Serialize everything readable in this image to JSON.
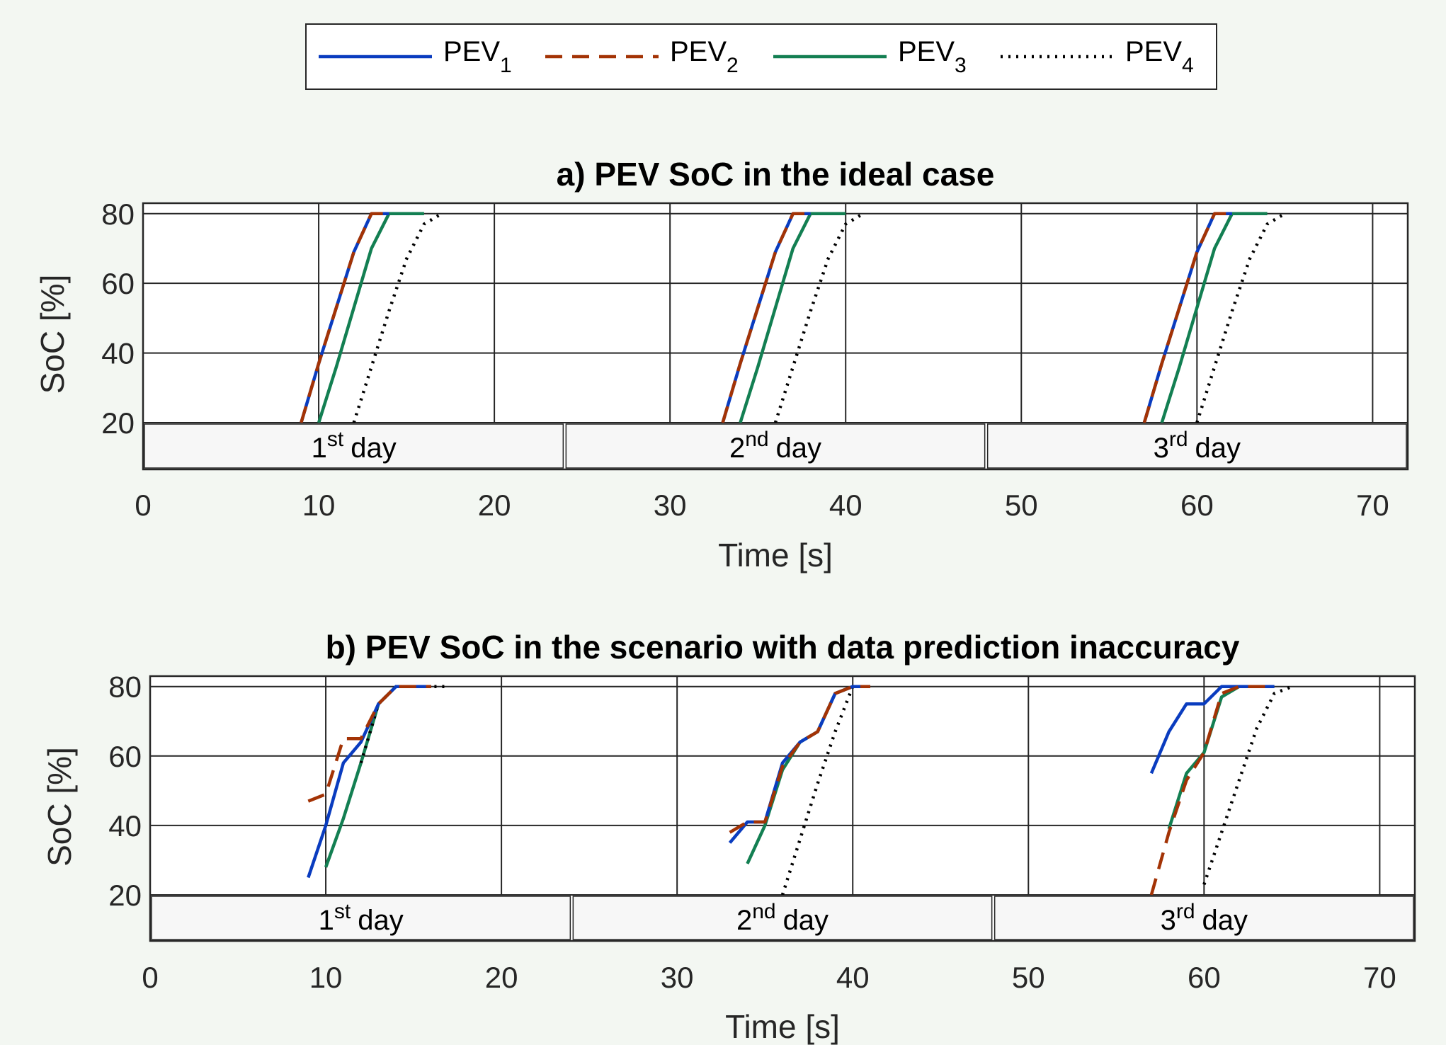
{
  "legend": {
    "entries": [
      {
        "base": "PEV",
        "sub": "1",
        "color": "#0a3cbf",
        "dash": "solid"
      },
      {
        "base": "PEV",
        "sub": "2",
        "color": "#a33305",
        "dash": "dashed"
      },
      {
        "base": "PEV",
        "sub": "3",
        "color": "#137f52",
        "dash": "solid"
      },
      {
        "base": "PEV",
        "sub": "4",
        "color": "#000000",
        "dash": "dotted"
      }
    ]
  },
  "chart_data": [
    {
      "type": "line",
      "title": "a) PEV SoC in the ideal case",
      "xlabel": "Time [s]",
      "ylabel": "SoC [%]",
      "xlim": [
        0,
        72
      ],
      "ylim": [
        20,
        83
      ],
      "xticks": [
        0,
        10,
        20,
        30,
        40,
        50,
        60,
        70
      ],
      "yticks": [
        20,
        40,
        60,
        80
      ],
      "grid": true,
      "day_band": [
        {
          "num": "1",
          "sup": "st",
          "word": "day",
          "range": [
            0,
            24
          ]
        },
        {
          "num": "2",
          "sup": "nd",
          "word": "day",
          "range": [
            24,
            48
          ]
        },
        {
          "num": "3",
          "sup": "rd",
          "word": "day",
          "range": [
            48,
            72
          ]
        }
      ],
      "series": [
        {
          "name": "PEV1",
          "segments": [
            [
              [
                9,
                20
              ],
              [
                10,
                37
              ],
              [
                11,
                53
              ],
              [
                12,
                69
              ],
              [
                13,
                80
              ],
              [
                14,
                80
              ]
            ],
            [
              [
                33,
                20
              ],
              [
                34,
                37
              ],
              [
                35,
                53
              ],
              [
                36,
                69
              ],
              [
                37,
                80
              ],
              [
                38,
                80
              ]
            ],
            [
              [
                57,
                20
              ],
              [
                58,
                37
              ],
              [
                59,
                53
              ],
              [
                60,
                69
              ],
              [
                61,
                80
              ],
              [
                62,
                80
              ]
            ]
          ]
        },
        {
          "name": "PEV2",
          "segments": [
            [
              [
                9,
                20
              ],
              [
                10,
                37
              ],
              [
                11,
                53
              ],
              [
                12,
                69
              ],
              [
                13,
                80
              ],
              [
                14,
                80
              ]
            ],
            [
              [
                33,
                20
              ],
              [
                34,
                37
              ],
              [
                35,
                53
              ],
              [
                36,
                69
              ],
              [
                37,
                80
              ],
              [
                38,
                80
              ]
            ],
            [
              [
                57,
                20
              ],
              [
                58,
                37
              ],
              [
                59,
                53
              ],
              [
                60,
                69
              ],
              [
                61,
                80
              ],
              [
                62,
                80
              ]
            ]
          ]
        },
        {
          "name": "PEV3",
          "segments": [
            [
              [
                10,
                20
              ],
              [
                11,
                36
              ],
              [
                12,
                53
              ],
              [
                13,
                70
              ],
              [
                14,
                80
              ],
              [
                16,
                80
              ]
            ],
            [
              [
                34,
                20
              ],
              [
                35,
                36
              ],
              [
                36,
                53
              ],
              [
                37,
                70
              ],
              [
                38,
                80
              ],
              [
                40,
                80
              ]
            ],
            [
              [
                58,
                20
              ],
              [
                59,
                36
              ],
              [
                60,
                53
              ],
              [
                61,
                70
              ],
              [
                62,
                80
              ],
              [
                64,
                80
              ]
            ]
          ]
        },
        {
          "name": "PEV4",
          "segments": [
            [
              [
                12,
                20
              ],
              [
                13,
                36
              ],
              [
                14,
                52
              ],
              [
                15,
                67
              ],
              [
                16,
                77
              ],
              [
                17,
                80
              ]
            ],
            [
              [
                36,
                20
              ],
              [
                37,
                36
              ],
              [
                38,
                52
              ],
              [
                39,
                67
              ],
              [
                40,
                77
              ],
              [
                41,
                80
              ]
            ],
            [
              [
                60,
                20
              ],
              [
                61,
                36
              ],
              [
                62,
                52
              ],
              [
                63,
                67
              ],
              [
                64,
                77
              ],
              [
                65,
                80
              ]
            ]
          ]
        }
      ]
    },
    {
      "type": "line",
      "title": "b) PEV SoC in the scenario with data prediction inaccuracy",
      "xlabel": "Time [s]",
      "ylabel": "SoC [%]",
      "xlim": [
        0,
        72
      ],
      "ylim": [
        20,
        83
      ],
      "xticks": [
        0,
        10,
        20,
        30,
        40,
        50,
        60,
        70
      ],
      "yticks": [
        20,
        40,
        60,
        80
      ],
      "grid": true,
      "day_band": [
        {
          "num": "1",
          "sup": "st",
          "word": "day",
          "range": [
            0,
            24
          ]
        },
        {
          "num": "2",
          "sup": "nd",
          "word": "day",
          "range": [
            24,
            48
          ]
        },
        {
          "num": "3",
          "sup": "rd",
          "word": "day",
          "range": [
            48,
            72
          ]
        }
      ],
      "series": [
        {
          "name": "PEV1",
          "segments": [
            [
              [
                9,
                25
              ],
              [
                10,
                40
              ],
              [
                11,
                58
              ],
              [
                12,
                64
              ],
              [
                13,
                75
              ],
              [
                14,
                80
              ],
              [
                16,
                80
              ]
            ],
            [
              [
                33,
                35
              ],
              [
                34,
                41
              ],
              [
                35,
                41
              ],
              [
                36,
                58
              ],
              [
                37,
                64
              ],
              [
                38,
                67
              ],
              [
                39,
                78
              ],
              [
                40,
                80
              ],
              [
                41,
                80
              ]
            ],
            [
              [
                57,
                55
              ],
              [
                58,
                67
              ],
              [
                59,
                75
              ],
              [
                60,
                75
              ],
              [
                61,
                80
              ],
              [
                62,
                80
              ],
              [
                64,
                80
              ]
            ]
          ]
        },
        {
          "name": "PEV2",
          "segments": [
            [
              [
                9,
                47
              ],
              [
                10,
                49
              ],
              [
                11,
                65
              ],
              [
                12,
                65
              ],
              [
                13,
                75
              ],
              [
                14,
                80
              ],
              [
                16,
                80
              ]
            ],
            [
              [
                33,
                38
              ],
              [
                34,
                41
              ],
              [
                35,
                41
              ],
              [
                36,
                57
              ],
              [
                37,
                64
              ],
              [
                38,
                67
              ],
              [
                39,
                78
              ],
              [
                40,
                80
              ],
              [
                41,
                80
              ]
            ],
            [
              [
                57,
                20
              ],
              [
                58,
                38
              ],
              [
                59,
                53
              ],
              [
                60,
                61
              ],
              [
                61,
                78
              ],
              [
                62,
                80
              ],
              [
                64,
                80
              ]
            ]
          ]
        },
        {
          "name": "PEV3",
          "segments": [
            [
              [
                10,
                28
              ],
              [
                11,
                42
              ],
              [
                12,
                58
              ],
              [
                13,
                75
              ],
              [
                14,
                80
              ],
              [
                16,
                80
              ]
            ],
            [
              [
                34,
                29
              ],
              [
                35,
                40
              ],
              [
                36,
                56
              ],
              [
                37,
                64
              ],
              [
                38,
                67
              ],
              [
                39,
                78
              ],
              [
                40,
                80
              ],
              [
                41,
                80
              ]
            ],
            [
              [
                58,
                39
              ],
              [
                59,
                55
              ],
              [
                60,
                61
              ],
              [
                61,
                77
              ],
              [
                62,
                80
              ],
              [
                64,
                80
              ]
            ]
          ]
        },
        {
          "name": "PEV4",
          "segments": [
            [
              [
                12,
                58
              ],
              [
                13,
                75
              ],
              [
                14,
                80
              ],
              [
                17,
                80
              ]
            ],
            [
              [
                36,
                20
              ],
              [
                37,
                36
              ],
              [
                38,
                52
              ],
              [
                39,
                67
              ],
              [
                40,
                80
              ],
              [
                41,
                80
              ]
            ],
            [
              [
                60,
                23
              ],
              [
                61,
                38
              ],
              [
                62,
                53
              ],
              [
                63,
                68
              ],
              [
                64,
                78
              ],
              [
                65,
                80
              ]
            ]
          ]
        }
      ]
    }
  ]
}
